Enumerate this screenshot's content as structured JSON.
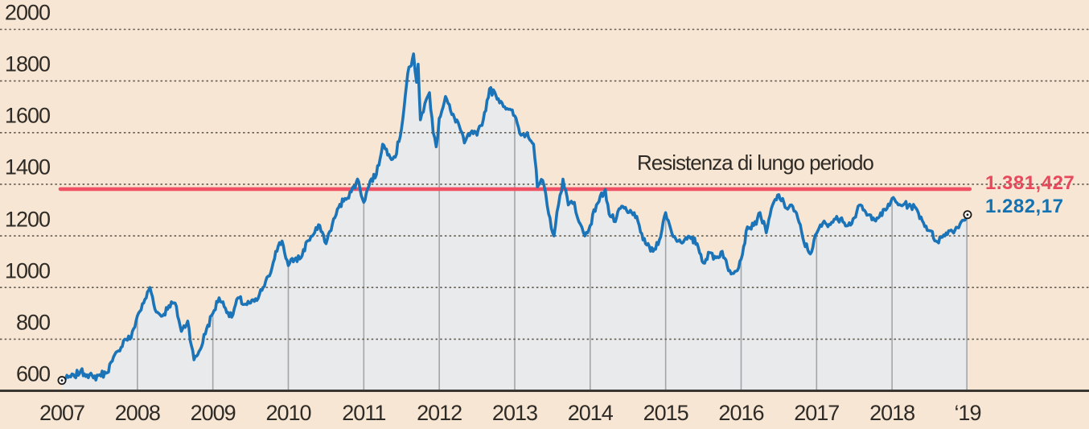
{
  "colors": {
    "background": "#f7e6d3",
    "plot_fill": "#e9eaec",
    "line": "#1b74b8",
    "line_text": "#1272b2",
    "resistance": "#f05064",
    "resistance_text": "#e8485c",
    "grid_dotted": "#635c52",
    "year_line": "#a3a5a8",
    "axis": "#3a3632",
    "text": "#2e2a25",
    "marker_ring": "#1d1a17",
    "marker_fill": "#ffffff"
  },
  "chart_data": {
    "type": "area",
    "annotation": "Resistenza di lungo periodo",
    "resistance": {
      "label": "1.381,427",
      "value": 1381.427
    },
    "last_point": {
      "label": "1.282,17",
      "value": 1282.17
    },
    "ylim": [
      600,
      2000
    ],
    "xlim": [
      2007.0,
      2019.03
    ],
    "grid": "horizontal-dotted",
    "legend": false,
    "y_ticks": [
      {
        "label": "2000",
        "value": 2000
      },
      {
        "label": "1800",
        "value": 1800
      },
      {
        "label": "1600",
        "value": 1600
      },
      {
        "label": "1400",
        "value": 1400
      },
      {
        "label": "1200",
        "value": 1200
      },
      {
        "label": "1000",
        "value": 1000
      },
      {
        "label": "800",
        "value": 800
      },
      {
        "label": "600",
        "value": 600
      }
    ],
    "x_ticks": [
      {
        "label": "2007",
        "year": 2007
      },
      {
        "label": "2008",
        "year": 2008
      },
      {
        "label": "2009",
        "year": 2009
      },
      {
        "label": "2010",
        "year": 2010
      },
      {
        "label": "2011",
        "year": 2011
      },
      {
        "label": "2012",
        "year": 2012
      },
      {
        "label": "2013",
        "year": 2013
      },
      {
        "label": "2014",
        "year": 2014
      },
      {
        "label": "2015",
        "year": 2015
      },
      {
        "label": "2016",
        "year": 2016
      },
      {
        "label": "2017",
        "year": 2017
      },
      {
        "label": "2018",
        "year": 2018
      },
      {
        "label": "‘19",
        "year": 2019
      }
    ],
    "series": [
      {
        "points": [
          [
            2007.0,
            640
          ],
          [
            2007.083,
            652
          ],
          [
            2007.167,
            655
          ],
          [
            2007.25,
            678
          ],
          [
            2007.333,
            662
          ],
          [
            2007.417,
            650
          ],
          [
            2007.5,
            662
          ],
          [
            2007.583,
            668
          ],
          [
            2007.667,
            715
          ],
          [
            2007.75,
            755
          ],
          [
            2007.833,
            800
          ],
          [
            2007.917,
            805
          ],
          [
            2008.0,
            890
          ],
          [
            2008.083,
            940
          ],
          [
            2008.167,
            1000
          ],
          [
            2008.25,
            905
          ],
          [
            2008.333,
            890
          ],
          [
            2008.417,
            930
          ],
          [
            2008.5,
            940
          ],
          [
            2008.583,
            830
          ],
          [
            2008.667,
            870
          ],
          [
            2008.75,
            720
          ],
          [
            2008.833,
            760
          ],
          [
            2008.917,
            840
          ],
          [
            2009.0,
            900
          ],
          [
            2009.083,
            960
          ],
          [
            2009.167,
            920
          ],
          [
            2009.25,
            885
          ],
          [
            2009.333,
            960
          ],
          [
            2009.417,
            935
          ],
          [
            2009.5,
            940
          ],
          [
            2009.583,
            950
          ],
          [
            2009.667,
            1000
          ],
          [
            2009.75,
            1045
          ],
          [
            2009.833,
            1140
          ],
          [
            2009.917,
            1180
          ],
          [
            2010.0,
            1085
          ],
          [
            2010.083,
            1110
          ],
          [
            2010.167,
            1115
          ],
          [
            2010.25,
            1180
          ],
          [
            2010.333,
            1205
          ],
          [
            2010.417,
            1240
          ],
          [
            2010.5,
            1170
          ],
          [
            2010.583,
            1245
          ],
          [
            2010.667,
            1310
          ],
          [
            2010.75,
            1345
          ],
          [
            2010.833,
            1370
          ],
          [
            2010.917,
            1420
          ],
          [
            2011.0,
            1330
          ],
          [
            2011.083,
            1412
          ],
          [
            2011.167,
            1438
          ],
          [
            2011.25,
            1555
          ],
          [
            2011.333,
            1515
          ],
          [
            2011.417,
            1505
          ],
          [
            2011.5,
            1615
          ],
          [
            2011.583,
            1830
          ],
          [
            2011.63,
            1860
          ],
          [
            2011.66,
            1905
          ],
          [
            2011.7,
            1795
          ],
          [
            2011.72,
            1865
          ],
          [
            2011.75,
            1650
          ],
          [
            2011.79,
            1680
          ],
          [
            2011.83,
            1730
          ],
          [
            2011.87,
            1755
          ],
          [
            2011.92,
            1600
          ],
          [
            2011.96,
            1545
          ],
          [
            2012.0,
            1655
          ],
          [
            2012.083,
            1740
          ],
          [
            2012.167,
            1670
          ],
          [
            2012.25,
            1640
          ],
          [
            2012.333,
            1560
          ],
          [
            2012.417,
            1600
          ],
          [
            2012.5,
            1590
          ],
          [
            2012.583,
            1650
          ],
          [
            2012.667,
            1770
          ],
          [
            2012.75,
            1745
          ],
          [
            2012.833,
            1715
          ],
          [
            2012.917,
            1690
          ],
          [
            2013.0,
            1665
          ],
          [
            2013.083,
            1590
          ],
          [
            2013.167,
            1600
          ],
          [
            2013.25,
            1555
          ],
          [
            2013.3,
            1390
          ],
          [
            2013.37,
            1415
          ],
          [
            2013.45,
            1285
          ],
          [
            2013.52,
            1200
          ],
          [
            2013.58,
            1320
          ],
          [
            2013.64,
            1420
          ],
          [
            2013.71,
            1320
          ],
          [
            2013.79,
            1330
          ],
          [
            2013.85,
            1255
          ],
          [
            2013.93,
            1200
          ],
          [
            2014.0,
            1240
          ],
          [
            2014.083,
            1320
          ],
          [
            2014.2,
            1380
          ],
          [
            2014.25,
            1285
          ],
          [
            2014.333,
            1255
          ],
          [
            2014.417,
            1315
          ],
          [
            2014.5,
            1290
          ],
          [
            2014.583,
            1290
          ],
          [
            2014.667,
            1215
          ],
          [
            2014.75,
            1165
          ],
          [
            2014.833,
            1140
          ],
          [
            2014.917,
            1185
          ],
          [
            2015.0,
            1290
          ],
          [
            2015.083,
            1210
          ],
          [
            2015.167,
            1180
          ],
          [
            2015.25,
            1185
          ],
          [
            2015.333,
            1190
          ],
          [
            2015.417,
            1170
          ],
          [
            2015.5,
            1095
          ],
          [
            2015.583,
            1135
          ],
          [
            2015.667,
            1115
          ],
          [
            2015.75,
            1140
          ],
          [
            2015.833,
            1065
          ],
          [
            2015.917,
            1062
          ],
          [
            2016.0,
            1110
          ],
          [
            2016.083,
            1235
          ],
          [
            2016.167,
            1240
          ],
          [
            2016.25,
            1290
          ],
          [
            2016.333,
            1212
          ],
          [
            2016.417,
            1320
          ],
          [
            2016.5,
            1360
          ],
          [
            2016.583,
            1310
          ],
          [
            2016.667,
            1320
          ],
          [
            2016.75,
            1270
          ],
          [
            2016.833,
            1175
          ],
          [
            2016.917,
            1130
          ],
          [
            2017.0,
            1210
          ],
          [
            2017.083,
            1250
          ],
          [
            2017.167,
            1245
          ],
          [
            2017.25,
            1265
          ],
          [
            2017.333,
            1270
          ],
          [
            2017.417,
            1240
          ],
          [
            2017.5,
            1270
          ],
          [
            2017.583,
            1320
          ],
          [
            2017.667,
            1280
          ],
          [
            2017.75,
            1270
          ],
          [
            2017.833,
            1275
          ],
          [
            2017.917,
            1300
          ],
          [
            2018.0,
            1345
          ],
          [
            2018.083,
            1320
          ],
          [
            2018.167,
            1325
          ],
          [
            2018.25,
            1315
          ],
          [
            2018.333,
            1300
          ],
          [
            2018.417,
            1250
          ],
          [
            2018.5,
            1220
          ],
          [
            2018.583,
            1180
          ],
          [
            2018.667,
            1195
          ],
          [
            2018.75,
            1220
          ],
          [
            2018.833,
            1222
          ],
          [
            2018.917,
            1255
          ],
          [
            2019.0,
            1282.17
          ]
        ]
      }
    ]
  }
}
